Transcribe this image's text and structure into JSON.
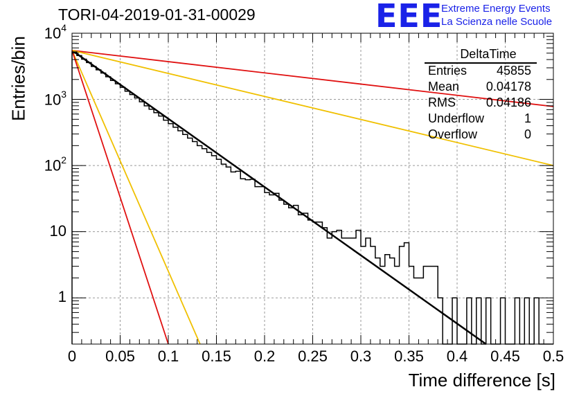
{
  "chart_data": {
    "type": "histogram",
    "title": "TORI-04-2019-01-31-00029",
    "xlabel": "Time difference [s]",
    "ylabel": "Entries/bin",
    "yscale": "log",
    "xlim": [
      0,
      0.5
    ],
    "ylim": [
      0.2,
      10000
    ],
    "grid": true,
    "x_ticks": [
      "0",
      "0.05",
      "0.1",
      "0.15",
      "0.2",
      "0.25",
      "0.3",
      "0.35",
      "0.4",
      "0.45",
      "0.5"
    ],
    "y_ticks": [
      {
        "value": 1,
        "base": "1",
        "exp": ""
      },
      {
        "value": 10,
        "base": "10",
        "exp": ""
      },
      {
        "value": 100,
        "base": "10",
        "exp": "2"
      },
      {
        "value": 1000,
        "base": "10",
        "exp": "3"
      },
      {
        "value": 10000,
        "base": "10",
        "exp": "4"
      }
    ],
    "histogram": {
      "bin_width": 0.005,
      "values": [
        5200,
        4600,
        4050,
        3600,
        3150,
        2800,
        2500,
        2200,
        1930,
        1720,
        1520,
        1330,
        1180,
        1050,
        920,
        800,
        710,
        630,
        560,
        485,
        430,
        380,
        335,
        295,
        260,
        230,
        200,
        180,
        158,
        141,
        124,
        105,
        95,
        80,
        82,
        63,
        61,
        62,
        48,
        48,
        39,
        36,
        38,
        30,
        26,
        23,
        25,
        18,
        19,
        15,
        14,
        14,
        11.5,
        8,
        10,
        10.5,
        8,
        8,
        8,
        10.5,
        6,
        8,
        6,
        4,
        3,
        4.5,
        4,
        3,
        6,
        6.8,
        3,
        2,
        2,
        3,
        3,
        3,
        1,
        0,
        0,
        1,
        0,
        0,
        1,
        0,
        1,
        0,
        1,
        0,
        0,
        1,
        0,
        0,
        1,
        0,
        1,
        0,
        1,
        0,
        0,
        0
      ]
    },
    "fit_lines": [
      {
        "color": "#000000",
        "from": [
          0,
          5500
        ],
        "to": [
          0.43,
          0.2
        ]
      },
      {
        "color": "#e01010",
        "from": [
          0,
          5500
        ],
        "to": [
          0.5,
          780
        ]
      },
      {
        "color": "#f0c000",
        "from": [
          0,
          5500
        ],
        "to": [
          0.5,
          100
        ]
      },
      {
        "color": "#f0c000",
        "from": [
          0,
          5500
        ],
        "to": [
          0.133,
          0.2
        ]
      },
      {
        "color": "#e01010",
        "from": [
          0,
          5500
        ],
        "to": [
          0.1,
          0.2
        ]
      }
    ],
    "stats_box": {
      "name": "DeltaTime",
      "rows": [
        {
          "label": "Entries",
          "value": "45855"
        },
        {
          "label": "Mean",
          "value": "0.04178"
        },
        {
          "label": "RMS",
          "value": "0.04186"
        },
        {
          "label": "Underflow",
          "value": "1"
        },
        {
          "label": "Overflow",
          "value": "0"
        }
      ]
    }
  },
  "logo": {
    "text": "EEE",
    "line1": "Extreme Energy Events",
    "line2": "La Scienza nelle Scuole",
    "color": "#1a22e8"
  }
}
